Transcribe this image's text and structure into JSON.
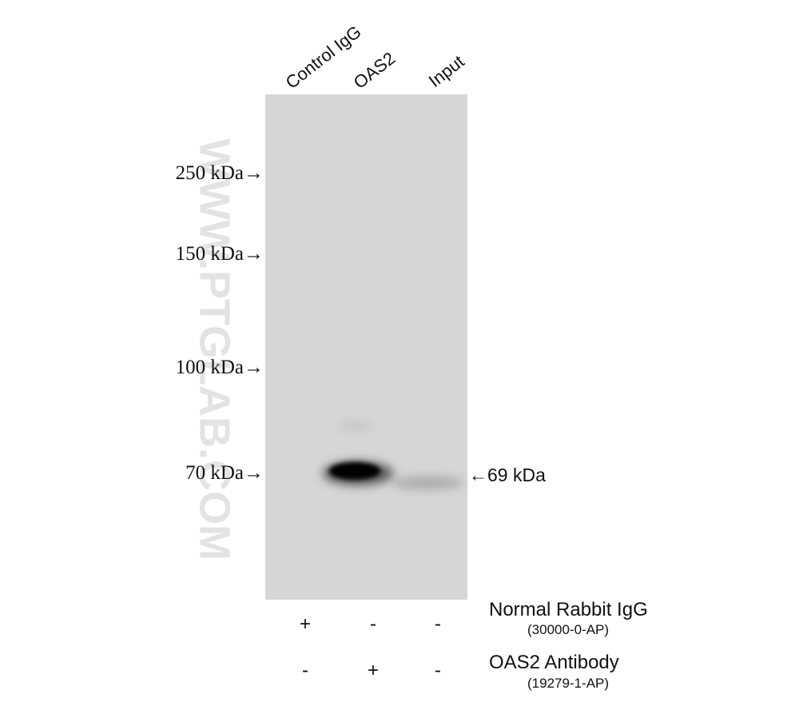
{
  "lanes": [
    "Control IgG",
    "OAS2",
    "Input"
  ],
  "markers": [
    "250 kDa→",
    "150 kDa→",
    "100 kDa→",
    "70 kDa→"
  ],
  "band_label": "←69 kDa",
  "watermark": "WWW.PTGLAB.COM",
  "treatments": [
    {
      "name": "Normal Rabbit IgG",
      "catalog": "(30000-0-AP)",
      "signs": [
        "+",
        "-",
        "-"
      ]
    },
    {
      "name": "OAS2 Antibody",
      "catalog": "(19279-1-AP)",
      "signs": [
        "-",
        "+",
        "-"
      ]
    }
  ]
}
